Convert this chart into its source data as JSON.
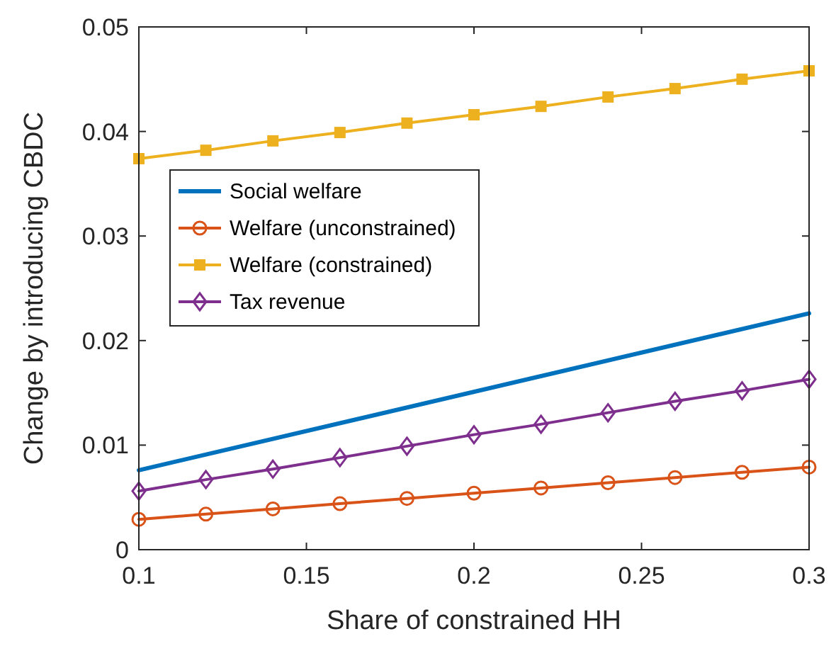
{
  "chart_data": {
    "type": "line",
    "xlabel": "Share of constrained HH",
    "ylabel": "Change by introducing CBDC",
    "x": [
      0.1,
      0.12,
      0.14,
      0.16,
      0.18,
      0.2,
      0.22,
      0.24,
      0.26,
      0.28,
      0.3
    ],
    "xlim": [
      0.1,
      0.3
    ],
    "xticks": [
      0.1,
      0.15,
      0.2,
      0.25,
      0.3
    ],
    "ylim": [
      0,
      0.05
    ],
    "yticks": [
      0,
      0.01,
      0.02,
      0.03,
      0.04,
      0.05
    ],
    "grid": false,
    "legend": "top left",
    "line_style": "solid",
    "series": [
      {
        "name": "Social welfare",
        "color": "#0072bd",
        "marker": "none",
        "x": [
          0.1,
          0.3
        ],
        "values": [
          0.0076,
          0.0226
        ]
      },
      {
        "name": "Welfare (unconstrained)",
        "color": "#d95319",
        "marker": "circle",
        "values": [
          0.0029,
          0.0034,
          0.0039,
          0.0044,
          0.0049,
          0.0054,
          0.0059,
          0.0064,
          0.0069,
          0.0074,
          0.0079
        ]
      },
      {
        "name": "Welfare (constrained)",
        "color": "#edb120",
        "marker": "square",
        "values": [
          0.0374,
          0.0382,
          0.0391,
          0.0399,
          0.0408,
          0.0416,
          0.0424,
          0.0433,
          0.0441,
          0.045,
          0.0458
        ]
      },
      {
        "name": "Tax revenue",
        "color": "#7e2f8e",
        "marker": "diamond",
        "values": [
          0.0056,
          0.0067,
          0.0077,
          0.0088,
          0.0099,
          0.011,
          0.012,
          0.0131,
          0.0142,
          0.0152,
          0.0163
        ]
      }
    ]
  }
}
